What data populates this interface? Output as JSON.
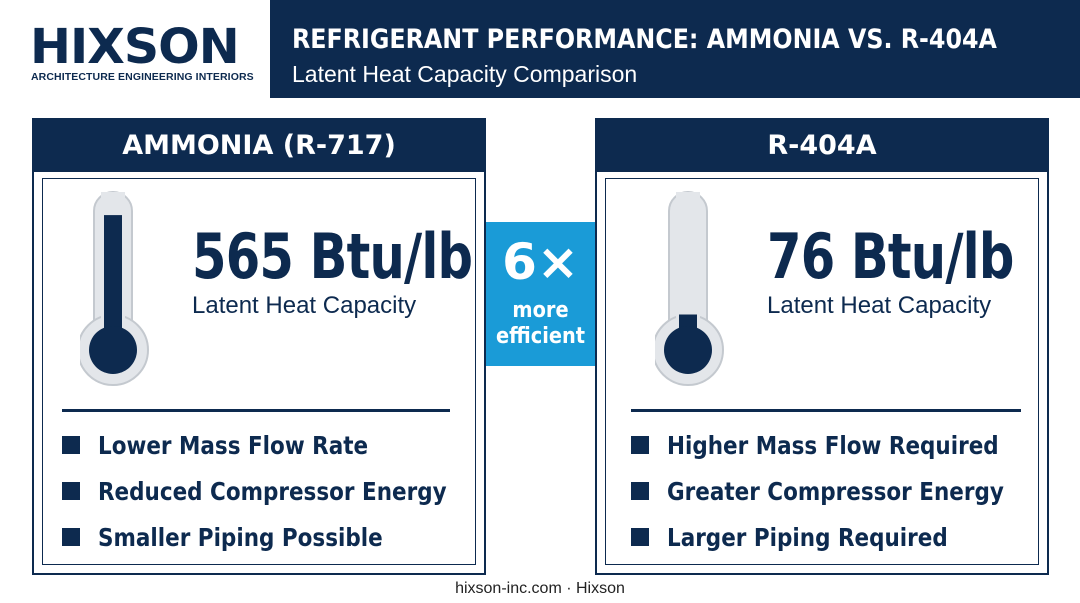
{
  "brand": {
    "name": "HIXSON",
    "tagline": "ARCHITECTURE ENGINEERING INTERIORS"
  },
  "header": {
    "title": "REFRIGERANT PERFORMANCE: AMMONIA VS. R-404A",
    "subtitle": "Latent Heat Capacity Comparison"
  },
  "comparison": {
    "multiplier": "6×",
    "caption_line1": "more",
    "caption_line2": "efficient"
  },
  "panels": {
    "ammonia": {
      "title": "AMMONIA (R-717)",
      "value": "565 Btu/lb",
      "value_label": "Latent Heat Capacity",
      "thermometer_fill": 0.95,
      "bullets": [
        "Lower Mass Flow Rate",
        "Reduced Compressor Energy",
        "Smaller Piping Possible"
      ]
    },
    "r404a": {
      "title": "R-404A",
      "value": "76 Btu/lb",
      "value_label": "Latent Heat Capacity",
      "thermometer_fill": 0.25,
      "bullets": [
        "Higher Mass Flow Required",
        "Greater Compressor Energy",
        "Larger Piping Required"
      ]
    }
  },
  "footer": {
    "text": "hixson-inc.com · Hixson"
  },
  "colors": {
    "navy": "#0d2a4f",
    "accent": "#1a9bd7",
    "background": "#ffffff",
    "thermometer_glass": "#e3e6ea"
  },
  "icons": {
    "thermometer": "thermometer-icon",
    "bullet": "square-bullet-icon"
  }
}
